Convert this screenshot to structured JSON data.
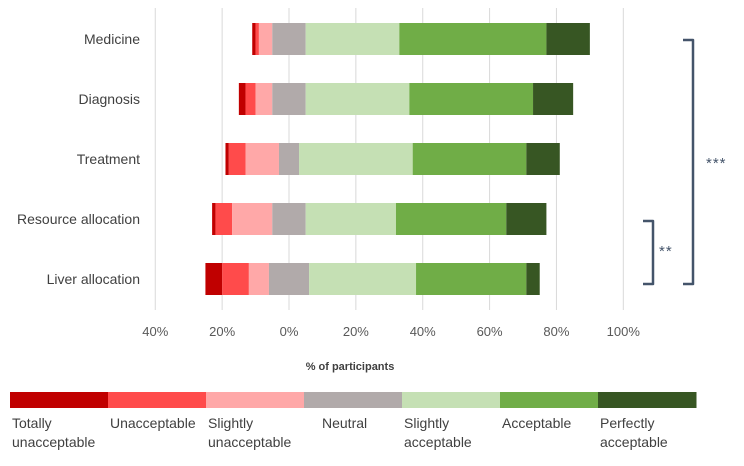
{
  "chart_data": {
    "type": "bar",
    "orientation": "horizontal",
    "stacked": "diverging",
    "categories": [
      "Medicine",
      "Diagnosis",
      "Treatment",
      "Resource allocation",
      "Liver allocation"
    ],
    "series": [
      {
        "name": "Totally unacceptable",
        "color": "#c00000",
        "values": [
          1,
          2,
          1,
          1,
          5
        ]
      },
      {
        "name": "Unacceptable",
        "color": "#ff4b4b",
        "values": [
          1,
          3,
          5,
          5,
          8
        ]
      },
      {
        "name": "Slightly unacceptable",
        "color": "#ffa8a8",
        "values": [
          4,
          5,
          10,
          12,
          6
        ]
      },
      {
        "name": "Neutral",
        "color": "#b1aaaa",
        "values": [
          10,
          10,
          6,
          10,
          12
        ]
      },
      {
        "name": "Slightly acceptable",
        "color": "#c5e0b4",
        "values": [
          28,
          31,
          34,
          27,
          32
        ]
      },
      {
        "name": "Acceptable",
        "color": "#70ad47",
        "values": [
          44,
          37,
          34,
          33,
          33
        ]
      },
      {
        "name": "Perfectly acceptable",
        "color": "#375623",
        "values": [
          13,
          12,
          10,
          12,
          4
        ]
      }
    ],
    "xlabel": "% of participants",
    "xlim": [
      -40,
      100
    ],
    "xticks": [
      -40,
      -20,
      0,
      20,
      40,
      60,
      80,
      100
    ],
    "xtick_labels": [
      "40%",
      "20%",
      "0%",
      "20%",
      "40%",
      "60%",
      "80%",
      "100%"
    ],
    "grid": true,
    "legend_position": "bottom",
    "annotations": [
      {
        "label": "***",
        "from": "Medicine",
        "to": "Liver allocation"
      },
      {
        "label": "**",
        "from": "Resource allocation",
        "to": "Liver allocation"
      }
    ]
  },
  "legend": {
    "labels": [
      "Totally\nunacceptable",
      "Unacceptable",
      "Slightly\nunacceptable",
      "Neutral",
      "Slightly\nacceptable",
      "Acceptable",
      "Perfectly\nacceptable"
    ]
  }
}
